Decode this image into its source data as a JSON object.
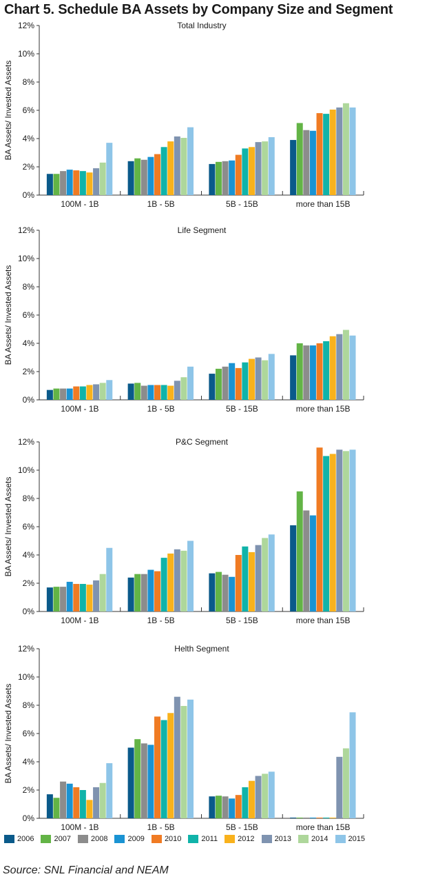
{
  "title": "Chart 5. Schedule BA Assets by Company Size and Segment",
  "source": "Source: SNL Financial and NEAM",
  "legend": {
    "items": [
      {
        "label": "2006",
        "color": "#0a5a8a"
      },
      {
        "label": "2007",
        "color": "#63b446"
      },
      {
        "label": "2008",
        "color": "#8c8c8c"
      },
      {
        "label": "2009",
        "color": "#1a93d3"
      },
      {
        "label": "2010",
        "color": "#f07b23"
      },
      {
        "label": "2011",
        "color": "#10b3a9"
      },
      {
        "label": "2012",
        "color": "#f9b21c"
      },
      {
        "label": "2013",
        "color": "#7f93b0"
      },
      {
        "label": "2014",
        "color": "#aed79b"
      },
      {
        "label": "2015",
        "color": "#8ec5e8"
      }
    ]
  },
  "chart_data": [
    {
      "type": "bar",
      "title": "Total Industry",
      "ylabel": "BA Assets/ Invested Assets",
      "ylim": [
        0,
        12
      ],
      "yticks": [
        "0%",
        "2%",
        "4%",
        "6%",
        "8%",
        "10%",
        "12%"
      ],
      "categories": [
        "100M - 1B",
        "1B - 5B",
        "5B - 15B",
        "more than 15B"
      ],
      "series": [
        {
          "name": "2006",
          "values": [
            1.5,
            2.4,
            2.2,
            3.9
          ]
        },
        {
          "name": "2007",
          "values": [
            1.5,
            2.6,
            2.35,
            5.1
          ]
        },
        {
          "name": "2008",
          "values": [
            1.7,
            2.5,
            2.4,
            4.6
          ]
        },
        {
          "name": "2009",
          "values": [
            1.8,
            2.7,
            2.45,
            4.55
          ]
        },
        {
          "name": "2010",
          "values": [
            1.75,
            2.9,
            2.85,
            5.8
          ]
        },
        {
          "name": "2011",
          "values": [
            1.7,
            3.4,
            3.3,
            5.75
          ]
        },
        {
          "name": "2012",
          "values": [
            1.6,
            3.8,
            3.4,
            6.05
          ]
        },
        {
          "name": "2013",
          "values": [
            1.9,
            4.15,
            3.75,
            6.2
          ]
        },
        {
          "name": "2014",
          "values": [
            2.3,
            4.05,
            3.8,
            6.5
          ]
        },
        {
          "name": "2015",
          "values": [
            3.7,
            4.8,
            4.1,
            6.2
          ]
        }
      ]
    },
    {
      "type": "bar",
      "title": "Life Segment",
      "ylabel": "BA Assets/ Invested Assets",
      "ylim": [
        0,
        12
      ],
      "yticks": [
        "0%",
        "2%",
        "4%",
        "6%",
        "8%",
        "10%",
        "12%"
      ],
      "categories": [
        "100M - 1B",
        "1B - 5B",
        "5B - 15B",
        "more than 15B"
      ],
      "series": [
        {
          "name": "2006",
          "values": [
            0.7,
            1.15,
            1.85,
            3.15
          ]
        },
        {
          "name": "2007",
          "values": [
            0.8,
            1.2,
            2.2,
            4.0
          ]
        },
        {
          "name": "2008",
          "values": [
            0.8,
            1.0,
            2.35,
            3.85
          ]
        },
        {
          "name": "2009",
          "values": [
            0.8,
            1.05,
            2.6,
            3.85
          ]
        },
        {
          "name": "2010",
          "values": [
            0.95,
            1.05,
            2.25,
            4.0
          ]
        },
        {
          "name": "2011",
          "values": [
            0.95,
            1.05,
            2.65,
            4.15
          ]
        },
        {
          "name": "2012",
          "values": [
            1.05,
            1.0,
            2.9,
            4.5
          ]
        },
        {
          "name": "2013",
          "values": [
            1.1,
            1.35,
            3.0,
            4.65
          ]
        },
        {
          "name": "2014",
          "values": [
            1.2,
            1.6,
            2.8,
            4.95
          ]
        },
        {
          "name": "2015",
          "values": [
            1.4,
            2.35,
            3.25,
            4.55
          ]
        }
      ]
    },
    {
      "type": "bar",
      "title": "P&C Segment",
      "ylabel": "BA Assets/ Invested Assets",
      "ylim": [
        0,
        12
      ],
      "yticks": [
        "0%",
        "2%",
        "4%",
        "6%",
        "8%",
        "10%",
        "12%"
      ],
      "categories": [
        "100M - 1B",
        "1B - 5B",
        "5B - 15B",
        "more than 15B"
      ],
      "series": [
        {
          "name": "2006",
          "values": [
            1.7,
            2.4,
            2.7,
            6.1
          ]
        },
        {
          "name": "2007",
          "values": [
            1.75,
            2.65,
            2.8,
            8.5
          ]
        },
        {
          "name": "2008",
          "values": [
            1.75,
            2.65,
            2.6,
            7.15
          ]
        },
        {
          "name": "2009",
          "values": [
            2.1,
            2.95,
            2.45,
            6.8
          ]
        },
        {
          "name": "2010",
          "values": [
            1.95,
            2.85,
            4.0,
            11.6
          ]
        },
        {
          "name": "2011",
          "values": [
            1.95,
            3.8,
            4.6,
            11.0
          ]
        },
        {
          "name": "2012",
          "values": [
            1.9,
            4.1,
            4.2,
            11.15
          ]
        },
        {
          "name": "2013",
          "values": [
            2.2,
            4.4,
            4.7,
            11.45
          ]
        },
        {
          "name": "2014",
          "values": [
            2.65,
            4.3,
            5.2,
            11.35
          ]
        },
        {
          "name": "2015",
          "values": [
            4.5,
            5.0,
            5.45,
            11.45
          ]
        }
      ]
    },
    {
      "type": "bar",
      "title": "Helth Segment",
      "ylabel": "BA Assets/ Invested Assets",
      "ylim": [
        0,
        12
      ],
      "yticks": [
        "0%",
        "2%",
        "4%",
        "6%",
        "8%",
        "10%",
        "12%"
      ],
      "categories": [
        "100M - 1B",
        "1B - 5B",
        "5B - 15B",
        "more than 15B"
      ],
      "series": [
        {
          "name": "2006",
          "values": [
            1.7,
            5.0,
            1.55,
            0.05
          ]
        },
        {
          "name": "2007",
          "values": [
            1.45,
            5.6,
            1.6,
            0.05
          ]
        },
        {
          "name": "2008",
          "values": [
            2.6,
            5.3,
            1.55,
            0.05
          ]
        },
        {
          "name": "2009",
          "values": [
            2.45,
            5.2,
            1.4,
            0.05
          ]
        },
        {
          "name": "2010",
          "values": [
            2.2,
            7.2,
            1.65,
            0.05
          ]
        },
        {
          "name": "2011",
          "values": [
            2.0,
            6.95,
            2.2,
            0.05
          ]
        },
        {
          "name": "2012",
          "values": [
            1.3,
            7.45,
            2.65,
            0.05
          ]
        },
        {
          "name": "2013",
          "values": [
            2.2,
            8.6,
            3.0,
            4.35
          ]
        },
        {
          "name": "2014",
          "values": [
            2.5,
            7.95,
            3.15,
            4.95
          ]
        },
        {
          "name": "2015",
          "values": [
            3.9,
            8.4,
            3.3,
            7.5
          ]
        }
      ]
    }
  ]
}
